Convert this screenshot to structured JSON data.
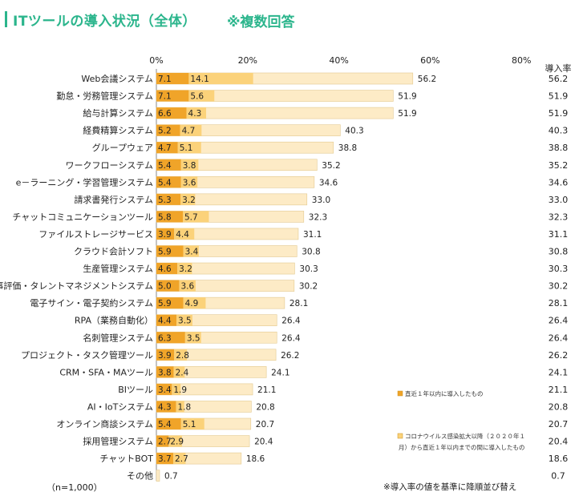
{
  "header": {
    "title": "ITツールの導入状況（全体）",
    "subtitle": "※複数回答"
  },
  "chart_data": {
    "type": "bar",
    "orientation": "horizontal",
    "stacked": true,
    "x_ticks": [
      "0%",
      "20%",
      "40%",
      "60%",
      "80%"
    ],
    "xlim": [
      0,
      80
    ],
    "rate_header": "導入率",
    "categories": [
      "Web会議システム",
      "勤怠・労務管理システム",
      "給与計算システム",
      "経費精算システム",
      "グループウェア",
      "ワークフローシステム",
      "e－ラーニング・学習管理システム",
      "請求書発行システム",
      "チャットコミュニケーションツール",
      "ファイルストレージサービス",
      "クラウド会計ソフト",
      "生産管理システム",
      "人事評価・タレントマネジメントシステム",
      "電子サイン・電子契約システム",
      "RPA（業務自動化）",
      "名刺管理システム",
      "プロジェクト・タスク管理ツール",
      "CRM・SFA・MAツール",
      "BIツール",
      "AI・IoTシステム",
      "オンライン商談システム",
      "採用管理システム",
      "チャットBOT",
      "その他"
    ],
    "series": [
      {
        "name": "直近１年以内に導入したもの",
        "color": "#f0a429",
        "values": [
          7.1,
          7.1,
          6.6,
          5.2,
          4.7,
          5.4,
          5.4,
          5.3,
          5.8,
          3.9,
          5.9,
          4.6,
          5.0,
          5.9,
          4.4,
          6.3,
          3.9,
          3.8,
          3.4,
          4.3,
          5.4,
          2.7,
          3.7,
          null
        ]
      },
      {
        "name": "コロナウイルス感染拡大以降（２０２０年１月）から直近１年以内までの間に導入したもの",
        "color": "#fbd27a",
        "values": [
          14.1,
          5.6,
          4.3,
          4.7,
          5.1,
          3.8,
          3.6,
          3.2,
          5.7,
          4.4,
          3.4,
          3.2,
          3.6,
          4.9,
          3.5,
          3.5,
          2.8,
          2.4,
          1.9,
          1.8,
          5.1,
          2.9,
          2.7,
          null
        ]
      },
      {
        "name": "導入率",
        "color": "#fdebc6",
        "values": [
          56.2,
          51.9,
          51.9,
          40.3,
          38.8,
          35.2,
          34.6,
          33.0,
          32.3,
          31.1,
          30.8,
          30.3,
          30.2,
          28.1,
          26.4,
          26.4,
          26.2,
          24.1,
          21.1,
          20.8,
          20.7,
          20.4,
          18.6,
          0.7
        ]
      }
    ],
    "rate_labels": [
      "56.2",
      "51.9",
      "51.9",
      "40.3",
      "38.8",
      "35.2",
      "34.6",
      "33.0",
      "32.3",
      "31.1",
      "30.8",
      "30.3",
      "30.2",
      "28.1",
      "26.4",
      "26.4",
      "26.2",
      "24.1",
      "21.1",
      "20.8",
      "20.7",
      "20.4",
      "18.6",
      "0.7"
    ],
    "legend_lines": [
      [
        "直近１年以内に導入したもの"
      ],
      [
        "コロナウイルス感染拡大以降（２０２０年１",
        "月）から直近１年以内までの間に導入したもの"
      ]
    ]
  },
  "notes": {
    "sample": "（n=1,000）",
    "sort": "※導入率の値を基準に降順並び替え"
  }
}
